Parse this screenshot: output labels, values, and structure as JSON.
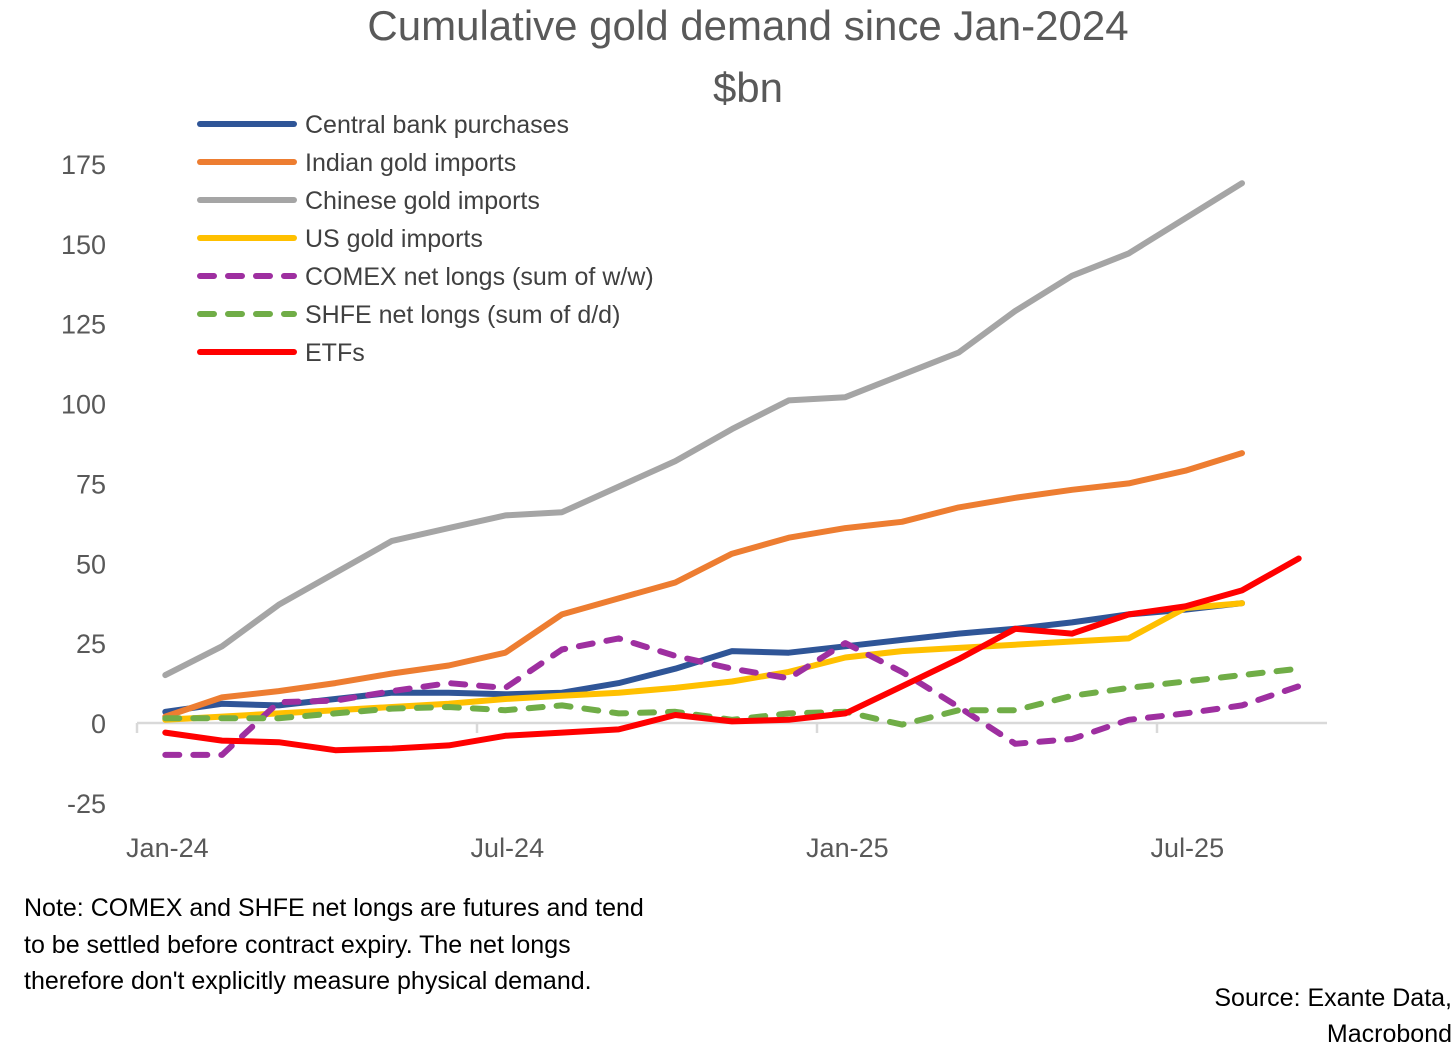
{
  "chart_data": {
    "type": "line",
    "title": "Cumulative gold demand since Jan-2024",
    "subtitle": "$bn",
    "xlabel": "",
    "ylabel": "",
    "ylim": [
      -25,
      175
    ],
    "yticks": [
      -25,
      0,
      25,
      50,
      75,
      100,
      125,
      150,
      175
    ],
    "x": [
      "Jan-24",
      "Feb-24",
      "Mar-24",
      "Apr-24",
      "May-24",
      "Jun-24",
      "Jul-24",
      "Aug-24",
      "Sep-24",
      "Oct-24",
      "Nov-24",
      "Dec-24",
      "Jan-25",
      "Feb-25",
      "Mar-25",
      "Apr-25",
      "May-25",
      "Jun-25",
      "Jul-25",
      "Aug-25",
      "Sep-25"
    ],
    "xtick_labels": [
      "Jan-24",
      "Jul-24",
      "Jan-25",
      "Jul-25"
    ],
    "grid": false,
    "legend_placement": "top-left",
    "series": [
      {
        "name": "Central bank purchases",
        "color": "#2F5597",
        "dashed": false,
        "values": [
          3.5,
          6,
          5.5,
          7.5,
          9.5,
          9.5,
          9,
          9.5,
          12.5,
          17,
          22.5,
          22,
          24,
          26,
          28,
          29.5,
          31.5,
          34,
          35.5,
          37.5,
          null
        ]
      },
      {
        "name": "Indian gold imports",
        "color": "#ED7D31",
        "dashed": false,
        "values": [
          2,
          8,
          10,
          12.5,
          15.5,
          18,
          22,
          34,
          39,
          44,
          53,
          58,
          61,
          63,
          67.5,
          70.5,
          73,
          75,
          79,
          84.5,
          null
        ]
      },
      {
        "name": "Chinese gold imports",
        "color": "#A5A5A5",
        "dashed": false,
        "values": [
          15,
          24,
          37,
          47,
          57,
          61,
          65,
          66,
          74,
          82,
          92,
          101,
          102,
          109,
          116,
          129,
          140,
          147,
          158,
          169,
          null
        ]
      },
      {
        "name": "US gold imports",
        "color": "#FFC000",
        "dashed": false,
        "values": [
          1,
          2,
          3,
          4,
          5,
          6,
          7.5,
          8.5,
          9.5,
          11,
          13,
          16,
          20.5,
          22.5,
          23.5,
          24.5,
          25.5,
          26.5,
          36,
          37.5,
          null
        ]
      },
      {
        "name": "COMEX net longs (sum of w/w)",
        "color": "#9E2FA0",
        "dashed": true,
        "values": [
          -10,
          -10,
          6.5,
          7,
          10,
          12.5,
          11,
          23,
          26.5,
          21,
          17,
          14,
          25,
          16,
          5,
          -6.5,
          -5,
          1,
          3,
          5.5,
          11.5
        ]
      },
      {
        "name": "SHFE net longs (sum of d/d)",
        "color": "#70AD47",
        "dashed": true,
        "values": [
          1.5,
          1.5,
          1.5,
          3,
          4.5,
          5,
          4,
          5.5,
          3,
          3.5,
          1,
          3,
          3.5,
          -0.5,
          4,
          4,
          8.5,
          11,
          13,
          15,
          17
        ]
      },
      {
        "name": "ETFs",
        "color": "#FF0000",
        "dashed": false,
        "values": [
          -3,
          -5.5,
          -6,
          -8.5,
          -8,
          -7,
          -4,
          -3,
          -2,
          2.5,
          0.5,
          1,
          3,
          11.5,
          20,
          29.5,
          28,
          34,
          36.5,
          41.5,
          51.5
        ]
      }
    ]
  },
  "note": [
    "Note: COMEX and SHFE net longs are futures and tend",
    "to be settled before contract expiry. The net longs",
    "therefore don't explicitly measure physical demand."
  ],
  "source": [
    "Source: Exante Data,",
    "Macrobond"
  ]
}
